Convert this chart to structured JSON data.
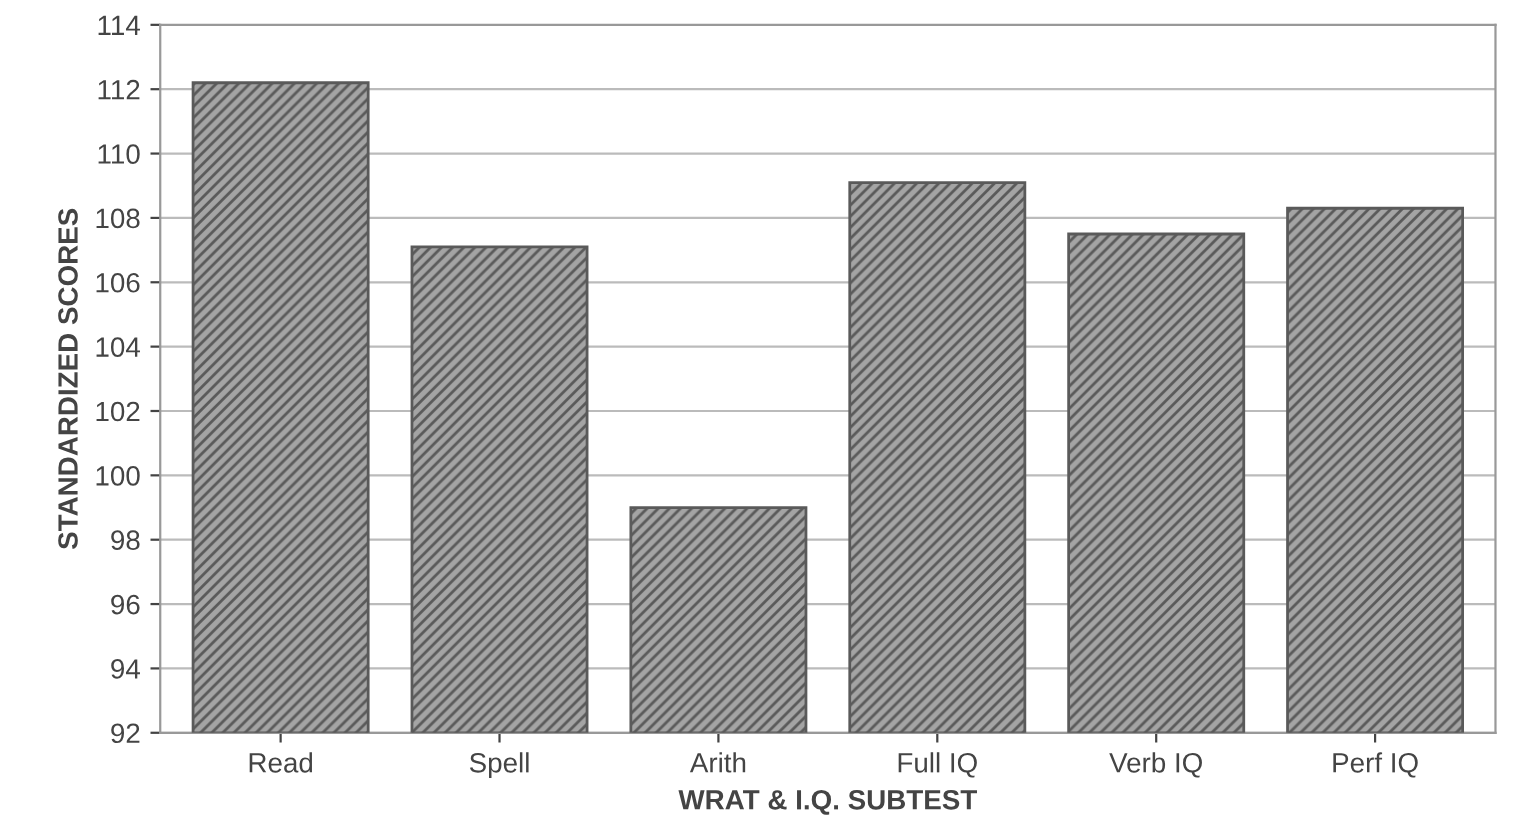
{
  "chart_data": {
    "type": "bar",
    "xlabel": "WRAT & I.Q. SUBTEST",
    "ylabel": "STANDARDIZED SCORES",
    "categories": [
      "Read",
      "Spell",
      "Arith",
      "Full IQ",
      "Verb IQ",
      "Perf IQ"
    ],
    "values": [
      112.2,
      107.1,
      99.0,
      109.1,
      107.5,
      108.3
    ],
    "color": "#5a5a5a",
    "ylim": [
      92,
      114
    ],
    "yticks": [
      92,
      94,
      96,
      98,
      100,
      102,
      104,
      106,
      108,
      110,
      112,
      114
    ],
    "grid": "y",
    "legend": false
  }
}
